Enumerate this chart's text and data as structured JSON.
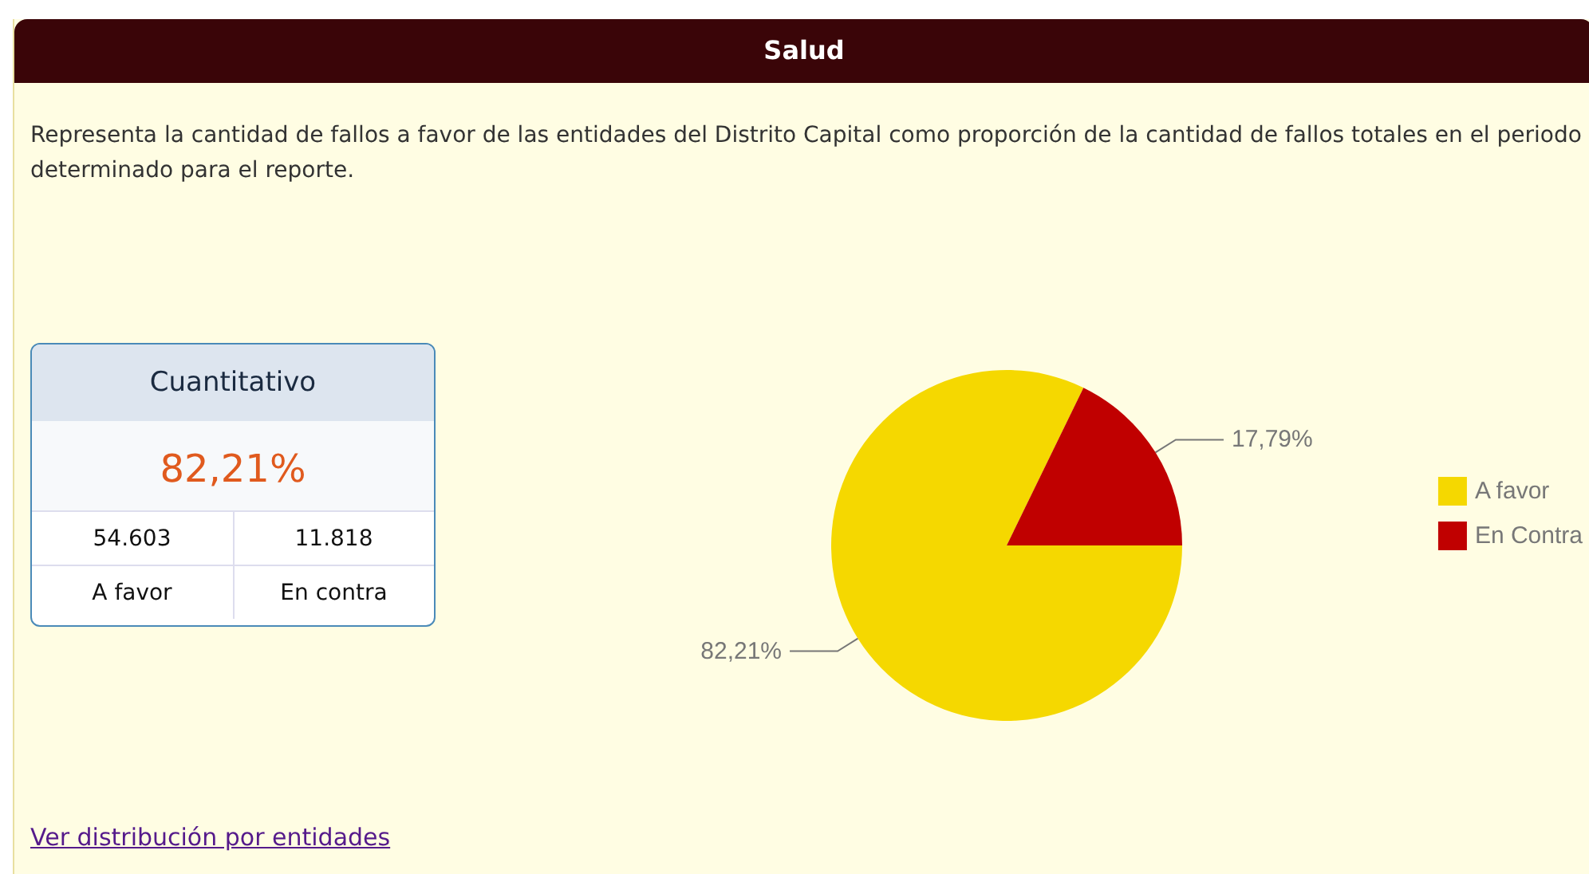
{
  "chart_data": [
    {
      "type": "other",
      "title": "Cuantitativo",
      "annotations": [
        "82,21%",
        "54.603",
        "11.818",
        "A favor",
        "En contra"
      ]
    },
    {
      "type": "pie",
      "title": "Salud",
      "subtitle": "Representa la cantidad de fallos a favor de las entidades del Distrito Capital como proporción de la cantidad de fallos totales en el periodo determinado para el reporte.",
      "categories": [
        "A favor",
        "En Contra"
      ],
      "values": [
        82.21,
        17.79
      ],
      "colors": [
        "#f5d800",
        "#c00000"
      ],
      "value_labels": [
        "82,21%",
        "17,79%"
      ],
      "legend": "right",
      "annotations": [
        "Ver distribución por entidades"
      ]
    }
  ]
}
